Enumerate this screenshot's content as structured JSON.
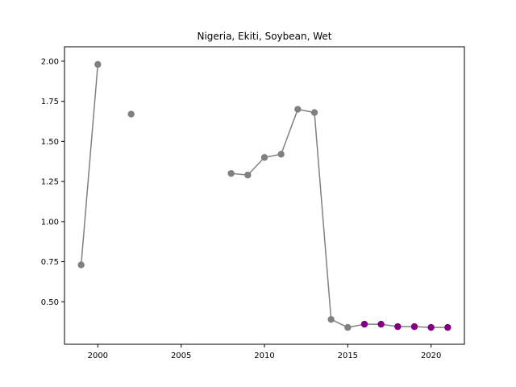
{
  "chart_data": {
    "type": "line",
    "title": "Nigeria, Ekiti, Soybean, Wet",
    "xlabel": "",
    "ylabel": "",
    "xlim": [
      1998,
      2022
    ],
    "ylim": [
      0.235,
      2.09
    ],
    "xticks": [
      2000,
      2005,
      2010,
      2015,
      2020
    ],
    "yticks": [
      0.5,
      0.75,
      1.0,
      1.25,
      1.5,
      1.75,
      2.0
    ],
    "ytick_labels": [
      "0.50",
      "0.75",
      "1.00",
      "1.25",
      "1.50",
      "1.75",
      "2.00"
    ],
    "grid": false,
    "series": [
      {
        "color": "#808080",
        "line_color": "#808080",
        "points": [
          {
            "x": 1999,
            "y": 0.73,
            "color": "#808080"
          },
          {
            "x": 2000,
            "y": 1.98,
            "color": "#808080"
          },
          {
            "x": 2001,
            "y": null
          },
          {
            "x": 2002,
            "y": 1.67,
            "color": "#808080"
          },
          {
            "x": 2003,
            "y": null
          },
          {
            "x": 2008,
            "y": 1.3,
            "color": "#808080"
          },
          {
            "x": 2009,
            "y": 1.29,
            "color": "#808080"
          },
          {
            "x": 2010,
            "y": 1.4,
            "color": "#808080"
          },
          {
            "x": 2011,
            "y": 1.42,
            "color": "#808080"
          },
          {
            "x": 2012,
            "y": 1.7,
            "color": "#808080"
          },
          {
            "x": 2013,
            "y": 1.68,
            "color": "#808080"
          },
          {
            "x": 2014,
            "y": 0.39,
            "color": "#808080"
          },
          {
            "x": 2015,
            "y": 0.34,
            "color": "#808080"
          },
          {
            "x": 2016,
            "y": 0.36,
            "color": "#800080"
          },
          {
            "x": 2017,
            "y": 0.36,
            "color": "#800080"
          },
          {
            "x": 2018,
            "y": 0.345,
            "color": "#800080"
          },
          {
            "x": 2019,
            "y": 0.345,
            "color": "#800080"
          },
          {
            "x": 2020,
            "y": 0.34,
            "color": "#800080"
          },
          {
            "x": 2021,
            "y": 0.34,
            "color": "#800080"
          }
        ]
      }
    ]
  }
}
